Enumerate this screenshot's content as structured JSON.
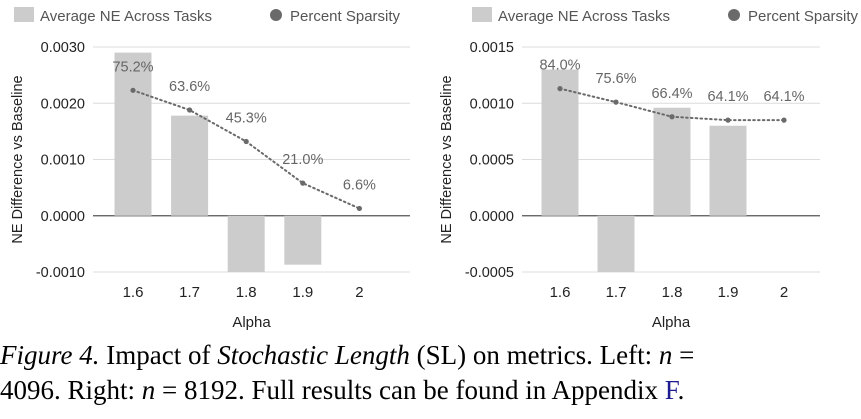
{
  "chart_data": [
    {
      "type": "bar+line",
      "legend": [
        "Average NE Across Tasks",
        "Percent Sparsity"
      ],
      "legend_position": "top",
      "xlabel": "Alpha",
      "ylabel": "NE Difference vs Baseline",
      "categories": [
        "1.6",
        "1.7",
        "1.8",
        "1.9",
        "2"
      ],
      "ylim": [
        -0.001,
        0.003
      ],
      "y_ticks": [
        "0.0030",
        "0.0020",
        "0.0010",
        "0.0000",
        "-0.0010"
      ],
      "y_tick_values": [
        0.003,
        0.002,
        0.001,
        0.0,
        -0.001
      ],
      "grid": "horizontal",
      "bar_series": {
        "name": "Average NE Across Tasks",
        "color": "#cccccc",
        "values": [
          0.0029,
          0.00178,
          -0.001,
          -0.00087,
          null
        ]
      },
      "line_series": {
        "name": "Percent Sparsity",
        "color": "#6a6a6a",
        "values": [
          75.2,
          63.6,
          45.3,
          21.0,
          6.6
        ],
        "labels": [
          "75.2%",
          "63.6%",
          "45.3%",
          "21.0%",
          "6.6%"
        ],
        "plotted_at": [
          0.00223,
          0.00188,
          0.00132,
          0.00058,
          0.00013
        ]
      }
    },
    {
      "type": "bar+line",
      "legend": [
        "Average NE Across Tasks",
        "Percent Sparsity"
      ],
      "legend_position": "top",
      "xlabel": "Alpha",
      "ylabel": "NE Difference vs Baseline",
      "categories": [
        "1.6",
        "1.7",
        "1.8",
        "1.9",
        "2"
      ],
      "ylim": [
        -0.0005,
        0.0015
      ],
      "y_ticks": [
        "0.0015",
        "0.0010",
        "0.0005",
        "0.0000",
        "-0.0005"
      ],
      "y_tick_values": [
        0.0015,
        0.001,
        0.0005,
        0.0,
        -0.0005
      ],
      "grid": "horizontal",
      "bar_series": {
        "name": "Average NE Across Tasks",
        "color": "#cccccc",
        "values": [
          0.0013,
          -0.0005,
          0.00096,
          0.0008,
          null
        ]
      },
      "line_series": {
        "name": "Percent Sparsity",
        "color": "#6a6a6a",
        "values": [
          84.0,
          75.6,
          66.4,
          64.1,
          64.1
        ],
        "labels": [
          "84.0%",
          "75.6%",
          "66.4%",
          "64.1%",
          "64.1%"
        ],
        "plotted_at": [
          0.00113,
          0.00101,
          0.00088,
          0.00085,
          0.00085
        ]
      }
    }
  ],
  "caption": {
    "label": "Figure 4.",
    "t1": " Impact of ",
    "t2": "Stochastic Length",
    "t3": " (SL) on metrics. Left: ",
    "var1": "n",
    "t4": " = ",
    "t5": "4096. Right: ",
    "var2": "n",
    "t6": " = 8192. Full results can be found in Appendix ",
    "link": "F",
    "t7": "."
  }
}
